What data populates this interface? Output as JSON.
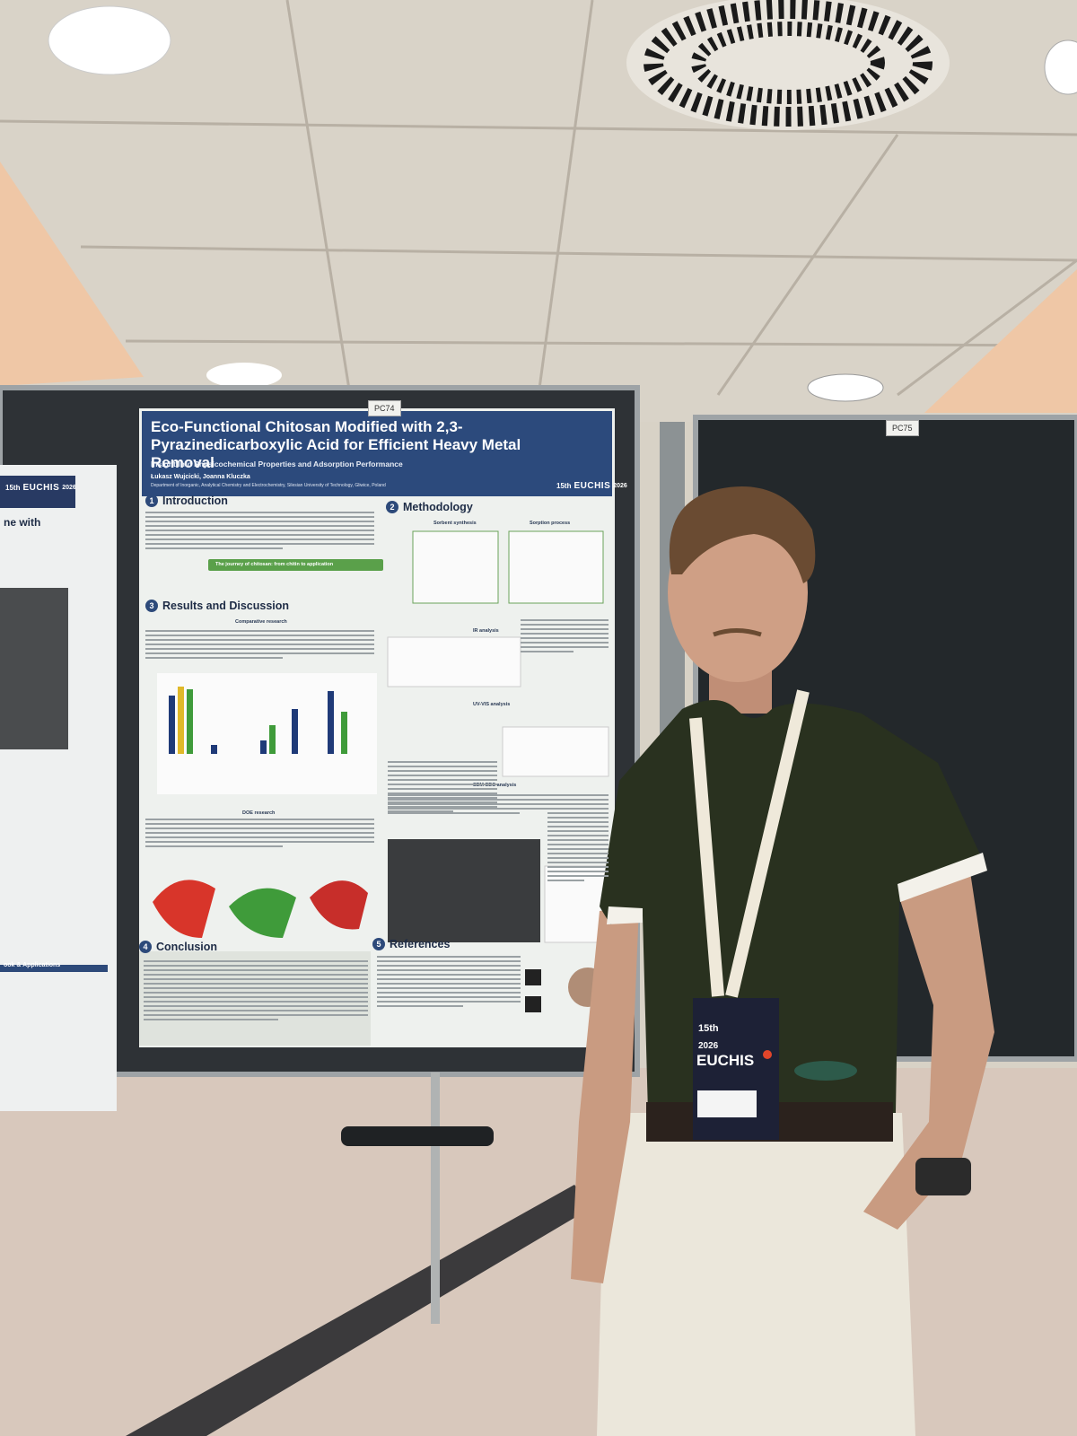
{
  "signs": [
    "PC74",
    "PC75"
  ],
  "neighbour_poster": {
    "logo": {
      "edition": "15th",
      "name": "EUCHIS",
      "year": "2026"
    },
    "title_fragment": "ne with",
    "heading_fragment": "ook & Applications"
  },
  "poster": {
    "title": "Eco-Functional Chitosan Modified with 2,3-Pyrazinedicarboxylic Acid for Efficient Heavy Metal Removal",
    "subtitle": "Insight Into Physicochemical Properties and Adsorption Performance",
    "authors": "Łukasz Wujcicki, Joanna Kluczka",
    "affiliation": "Department of Inorganic, Analytical Chemistry and Electrochemistry, Silesian University of Technology, Gliwice, Poland",
    "logo": {
      "edition": "15th",
      "name": "EUCHIS",
      "year": "2026"
    },
    "sections": [
      {
        "number": "1",
        "heading": "Introduction"
      },
      {
        "number": "2",
        "heading": "Methodology"
      },
      {
        "number": "3",
        "heading": "Results and Discussion"
      },
      {
        "number": "4",
        "heading": "Conclusion"
      },
      {
        "number": "5",
        "heading": "References"
      }
    ],
    "subheadings": [
      "The journey of chitosan: from chitin to application",
      "Sorbent synthesis",
      "Sorption process",
      "Comparative research",
      "IR analysis",
      "UV-VIS analysis",
      "SEM-EDS analysis",
      "DOE research"
    ]
  },
  "badge": {
    "edition": "15th",
    "name": "EUCHIS",
    "year": "2026"
  }
}
